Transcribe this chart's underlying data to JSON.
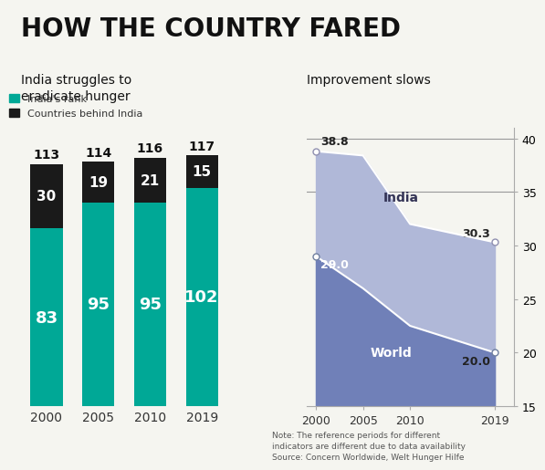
{
  "title": "HOW THE COUNTRY FARED",
  "left_subtitle": "India struggles to\neradicate hunger",
  "right_subtitle": "Improvement slows",
  "bar_years": [
    "2000",
    "2005",
    "2010",
    "2019"
  ],
  "india_rank": [
    83,
    95,
    95,
    102
  ],
  "countries_behind": [
    30,
    19,
    21,
    15
  ],
  "total_countries": [
    113,
    114,
    116,
    117
  ],
  "bar_color_teal": "#00A896",
  "bar_color_black": "#1a1a1a",
  "legend_teal_label": "India's rank",
  "legend_black_label": "Countries behind India",
  "line_years": [
    2000,
    2005,
    2010,
    2019
  ],
  "india_values": [
    38.8,
    38.4,
    32.0,
    30.3
  ],
  "world_values": [
    29.0,
    26.0,
    22.5,
    20.0
  ],
  "india_area_color": "#b0b8d8",
  "world_area_color": "#7080b8",
  "line_color": "#ffffff",
  "right_ylim": [
    15,
    41
  ],
  "right_yticks": [
    15,
    20,
    25,
    30,
    35,
    40
  ],
  "note_text": "Note: The reference periods for different\nindicators are different due to data availability\nSource: Concern Worldwide, Welt Hunger Hilfe",
  "background_color": "#f5f5f0"
}
